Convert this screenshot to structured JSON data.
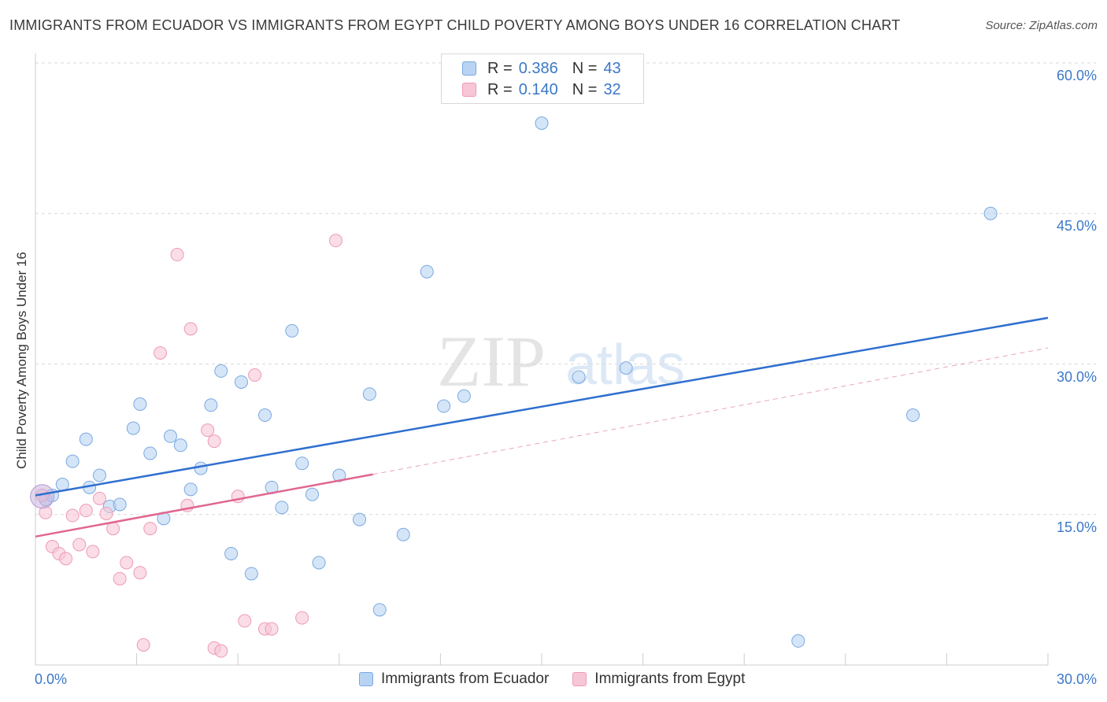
{
  "title": "IMMIGRANTS FROM ECUADOR VS IMMIGRANTS FROM EGYPT CHILD POVERTY AMONG BOYS UNDER 16 CORRELATION CHART",
  "source": "Source: ZipAtlas.com",
  "watermark": {
    "zip": "ZIP",
    "atlas": "atlas"
  },
  "legend": {
    "rows": [
      {
        "r_label": "R =",
        "r_value": "0.386",
        "n_label": "N =",
        "n_value": "43"
      },
      {
        "r_label": "R =",
        "r_value": "0.140",
        "n_label": "N =",
        "n_value": "32"
      }
    ]
  },
  "colors": {
    "ecuador_fill": "#b9d3f3",
    "ecuador_stroke": "#7aa9e0",
    "ecuador_line": "#2f6fcf",
    "egypt_fill": "#f7c6d6",
    "egypt_stroke": "#ee9ab7",
    "egypt_line": "#e0678f",
    "axis_text": "#3b78c8",
    "grid": "#d9d9d9"
  },
  "chart_data": {
    "type": "scatter",
    "title": "IMMIGRANTS FROM ECUADOR VS IMMIGRANTS FROM EGYPT CHILD POVERTY AMONG BOYS UNDER 16 CORRELATION CHART",
    "xlabel": "",
    "ylabel": "Child Poverty Among Boys Under 16",
    "xlim": [
      0,
      30
    ],
    "ylim": [
      0,
      63
    ],
    "x_tick_labels": [
      "0.0%",
      "30.0%"
    ],
    "y_ticks": [
      15,
      30,
      45,
      60
    ],
    "y_tick_labels": [
      "15.0%",
      "30.0%",
      "45.0%",
      "60.0%"
    ],
    "grid": true,
    "legend_position": "top-center",
    "series": [
      {
        "name": "Immigrants from Ecuador",
        "r": 0.386,
        "n": 43,
        "trend": {
          "x": [
            0,
            30
          ],
          "y": [
            16.9,
            34.6
          ]
        },
        "points": [
          [
            0.3,
            16.5
          ],
          [
            0.5,
            16.9
          ],
          [
            0.8,
            18.0
          ],
          [
            1.1,
            20.3
          ],
          [
            1.5,
            22.5
          ],
          [
            1.6,
            17.7
          ],
          [
            1.9,
            18.9
          ],
          [
            2.2,
            15.8
          ],
          [
            2.5,
            16.0
          ],
          [
            2.9,
            23.6
          ],
          [
            3.1,
            26.0
          ],
          [
            3.4,
            21.1
          ],
          [
            3.8,
            14.6
          ],
          [
            4.0,
            22.8
          ],
          [
            4.3,
            21.9
          ],
          [
            4.6,
            17.5
          ],
          [
            4.9,
            19.6
          ],
          [
            5.2,
            25.9
          ],
          [
            5.5,
            29.3
          ],
          [
            5.8,
            11.1
          ],
          [
            6.1,
            28.2
          ],
          [
            6.4,
            9.1
          ],
          [
            6.8,
            24.9
          ],
          [
            7.0,
            17.7
          ],
          [
            7.3,
            15.7
          ],
          [
            7.6,
            33.3
          ],
          [
            7.9,
            20.1
          ],
          [
            8.2,
            17.0
          ],
          [
            8.4,
            10.2
          ],
          [
            9.0,
            18.9
          ],
          [
            9.6,
            14.5
          ],
          [
            9.9,
            27.0
          ],
          [
            10.2,
            5.5
          ],
          [
            10.9,
            13.0
          ],
          [
            11.6,
            39.2
          ],
          [
            12.1,
            25.8
          ],
          [
            12.7,
            26.8
          ],
          [
            15.0,
            54.0
          ],
          [
            16.1,
            28.7
          ],
          [
            17.5,
            29.6
          ],
          [
            22.6,
            2.4
          ],
          [
            26.0,
            24.9
          ],
          [
            28.3,
            45.0
          ]
        ]
      },
      {
        "name": "Immigrants from Egypt",
        "r": 0.14,
        "n": 32,
        "trend": {
          "x": [
            0,
            10
          ],
          "y": [
            12.8,
            19.0
          ]
        },
        "trend_extension": {
          "x": [
            10,
            30
          ],
          "y": [
            19.0,
            31.6
          ]
        },
        "points": [
          [
            0.3,
            15.2
          ],
          [
            0.5,
            11.8
          ],
          [
            0.7,
            11.1
          ],
          [
            0.9,
            10.6
          ],
          [
            1.1,
            14.9
          ],
          [
            1.3,
            12.0
          ],
          [
            1.5,
            15.4
          ],
          [
            1.7,
            11.3
          ],
          [
            1.9,
            16.6
          ],
          [
            2.1,
            15.1
          ],
          [
            2.3,
            13.6
          ],
          [
            2.5,
            8.6
          ],
          [
            2.7,
            10.2
          ],
          [
            3.1,
            9.2
          ],
          [
            3.2,
            2.0
          ],
          [
            3.4,
            13.6
          ],
          [
            3.7,
            31.1
          ],
          [
            4.2,
            40.9
          ],
          [
            4.5,
            15.9
          ],
          [
            4.6,
            33.5
          ],
          [
            5.1,
            23.4
          ],
          [
            5.3,
            22.3
          ],
          [
            5.3,
            1.7
          ],
          [
            5.5,
            1.4
          ],
          [
            6.0,
            16.8
          ],
          [
            6.2,
            4.4
          ],
          [
            6.5,
            28.9
          ],
          [
            6.8,
            3.6
          ],
          [
            7.0,
            3.6
          ],
          [
            7.9,
            4.7
          ],
          [
            8.9,
            42.3
          ],
          [
            0.2,
            16.9
          ]
        ]
      }
    ]
  },
  "y_axis_title": "Child Poverty Among Boys Under 16",
  "x_axis_labels": {
    "left": "0.0%",
    "right": "30.0%"
  },
  "bottom_legend": [
    "Immigrants from Ecuador",
    "Immigrants from Egypt"
  ]
}
